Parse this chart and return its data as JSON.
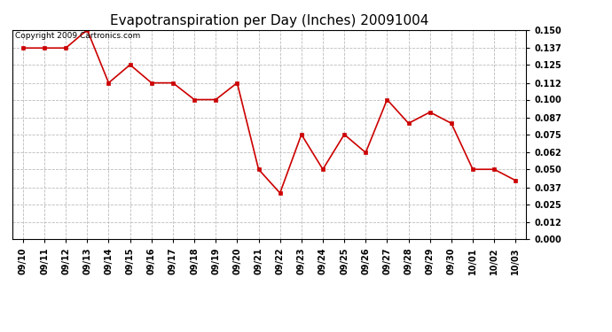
{
  "title": "Evapotranspiration per Day (Inches) 20091004",
  "copyright": "Copyright 2009 Cartronics.com",
  "x_labels": [
    "09/10",
    "09/11",
    "09/12",
    "09/13",
    "09/14",
    "09/15",
    "09/16",
    "09/17",
    "09/18",
    "09/19",
    "09/20",
    "09/21",
    "09/22",
    "09/23",
    "09/24",
    "09/25",
    "09/26",
    "09/27",
    "09/28",
    "09/29",
    "09/30",
    "10/01",
    "10/02",
    "10/03"
  ],
  "y_values": [
    0.137,
    0.137,
    0.137,
    0.15,
    0.112,
    0.125,
    0.112,
    0.112,
    0.1,
    0.1,
    0.112,
    0.05,
    0.033,
    0.075,
    0.05,
    0.075,
    0.062,
    0.1,
    0.083,
    0.091,
    0.083,
    0.05,
    0.05,
    0.042
  ],
  "line_color": "#cc0000",
  "marker": "s",
  "marker_size": 3,
  "ylim": [
    0.0,
    0.15
  ],
  "yticks": [
    0.0,
    0.012,
    0.025,
    0.037,
    0.05,
    0.062,
    0.075,
    0.087,
    0.1,
    0.112,
    0.125,
    0.137,
    0.15
  ],
  "background_color": "#ffffff",
  "grid_color": "#bbbbbb",
  "title_fontsize": 11,
  "tick_fontsize": 7,
  "copyright_fontsize": 6.5
}
